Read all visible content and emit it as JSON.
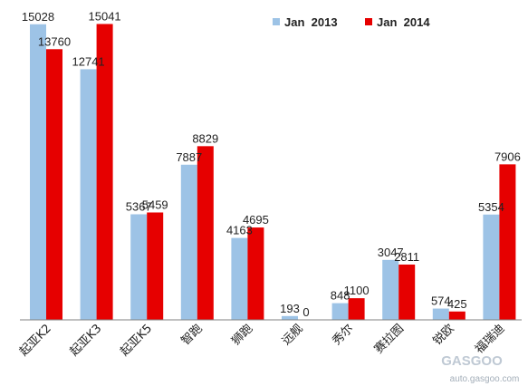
{
  "chart_data": {
    "type": "bar",
    "categories": [
      "起亚K2",
      "起亚K3",
      "起亚K5",
      "智跑",
      "狮跑",
      "远舰",
      "秀尔",
      "赛拉图",
      "锐欧",
      "福瑞迪"
    ],
    "series": [
      {
        "name": "Jan  2013",
        "color": "#9dc3e6",
        "values": [
          15028,
          12741,
          5367,
          7887,
          4163,
          193,
          848,
          3047,
          574,
          5354
        ]
      },
      {
        "name": "Jan  2014",
        "color": "#e60000",
        "values": [
          13760,
          15041,
          5459,
          8829,
          4695,
          0,
          1100,
          2811,
          425,
          7906
        ]
      }
    ],
    "legend_position": "top-right",
    "grid": false,
    "ylim": [
      0,
      15800
    ],
    "title": "",
    "xlabel": "",
    "ylabel": ""
  },
  "watermark": {
    "logo_text": "GASGOO",
    "url_text": "auto.gasgoo.com"
  }
}
